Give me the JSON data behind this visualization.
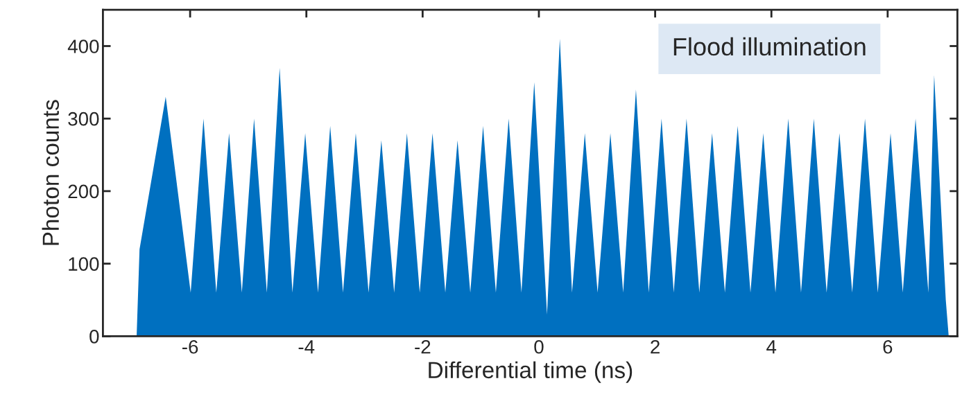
{
  "chart_data": {
    "type": "area",
    "xlabel": "Differential time (ns)",
    "ylabel": "Photon counts",
    "x": [
      -6.92,
      -6.87,
      -6.42,
      -5.99,
      -5.77,
      -5.55,
      -5.33,
      -5.11,
      -4.9,
      -4.68,
      -4.46,
      -4.24,
      -4.02,
      -3.8,
      -3.59,
      -3.37,
      -3.15,
      -2.93,
      -2.71,
      -2.49,
      -2.27,
      -2.05,
      -1.83,
      -1.61,
      -1.4,
      -1.18,
      -0.96,
      -0.74,
      -0.52,
      -0.3,
      -0.08,
      0.14,
      0.36,
      0.57,
      0.79,
      1.01,
      1.23,
      1.45,
      1.67,
      1.89,
      2.11,
      2.32,
      2.54,
      2.76,
      2.98,
      3.2,
      3.42,
      3.64,
      3.86,
      4.07,
      4.29,
      4.51,
      4.73,
      4.95,
      5.17,
      5.39,
      5.61,
      5.83,
      6.05,
      6.26,
      6.48,
      6.7,
      6.8,
      7.0,
      7.05
    ],
    "series": [
      {
        "color": "#0070c0",
        "values": [
          0,
          120,
          330,
          60,
          300,
          60,
          280,
          60,
          300,
          60,
          370,
          60,
          280,
          60,
          290,
          60,
          280,
          60,
          270,
          60,
          280,
          60,
          280,
          60,
          270,
          60,
          290,
          60,
          300,
          60,
          350,
          30,
          410,
          60,
          280,
          60,
          280,
          60,
          340,
          60,
          300,
          60,
          300,
          60,
          280,
          60,
          290,
          60,
          280,
          60,
          300,
          60,
          300,
          60,
          280,
          60,
          300,
          60,
          280,
          60,
          300,
          60,
          360,
          50,
          0
        ]
      }
    ],
    "xlim": [
      -7.5,
      7.2
    ],
    "xticks": [
      -6,
      -4,
      -2,
      0,
      2,
      4,
      6
    ],
    "ylim": [
      0,
      450
    ],
    "yticks": [
      0,
      100,
      200,
      300,
      400
    ],
    "annotations": [
      "Flood illumination"
    ],
    "grid": false,
    "legend": false
  }
}
